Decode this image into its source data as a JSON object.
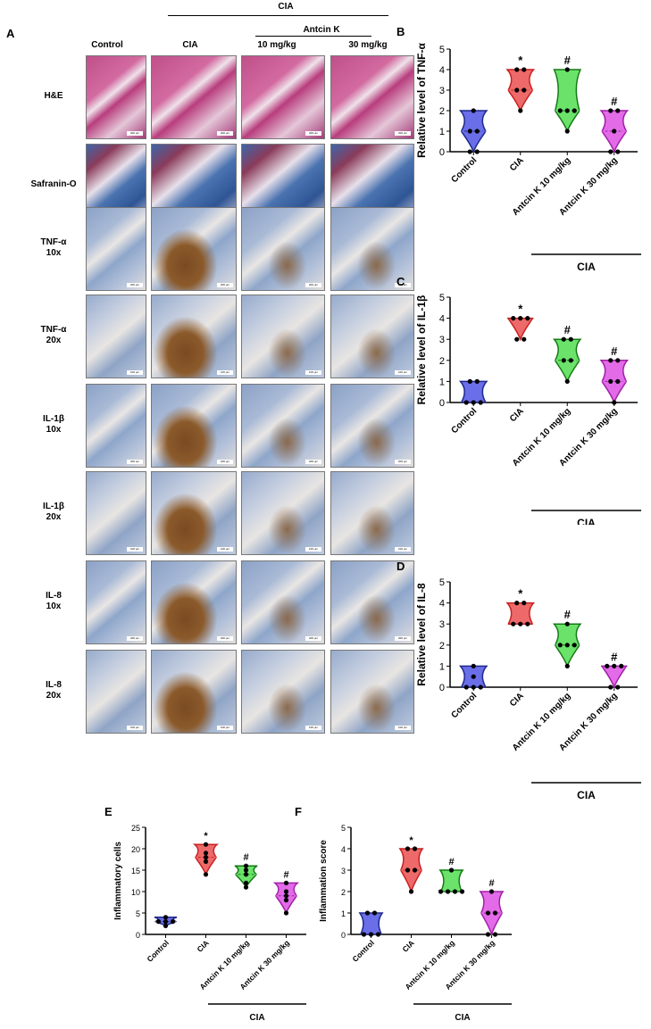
{
  "figure": {
    "panel_labels": {
      "A": "A",
      "B": "B",
      "C": "C",
      "D": "D",
      "E": "E",
      "F": "F"
    },
    "top_group": "CIA",
    "antcin_group": "Antcin K",
    "columns": [
      "Control",
      "CIA",
      "10 mg/kg",
      "30 mg/kg"
    ],
    "rows": [
      {
        "line1": "H&E",
        "line2": "",
        "stain": "he",
        "scale": "200 μm"
      },
      {
        "line1": "Safranin-O",
        "line2": "",
        "stain": "saf",
        "scale": "200 μm"
      },
      {
        "line1": "TNF-α",
        "line2": "10x",
        "stain": "ihc10",
        "scale": "200 μm"
      },
      {
        "line1": "TNF-α",
        "line2": "20x",
        "stain": "ihc20",
        "scale": "100 μm"
      },
      {
        "line1": "IL-1β",
        "line2": "10x",
        "stain": "ihc10",
        "scale": "200 μm"
      },
      {
        "line1": "IL-1β",
        "line2": "20x",
        "stain": "ihc20",
        "scale": "100 μm"
      },
      {
        "line1": "IL-8",
        "line2": "10x",
        "stain": "ihc10",
        "scale": "200 μm"
      },
      {
        "line1": "IL-8",
        "line2": "20x",
        "stain": "ihc20",
        "scale": "100 μm"
      }
    ],
    "colors": {
      "control": "#6a6ee8",
      "cia": "#ee6a6a",
      "low": "#6be36b",
      "high": "#e36be8",
      "control_dark": "#1e2a8a",
      "cia_dark": "#c82020",
      "low_dark": "#157a15",
      "high_dark": "#a020a8"
    }
  },
  "chart_data": [
    {
      "id": "B",
      "type": "violin",
      "ylabel": "Relative level of TNF-α",
      "ylim": [
        0,
        5
      ],
      "yticks": [
        "0",
        "1",
        "2",
        "3",
        "4",
        "5"
      ],
      "categories": [
        "Control",
        "CIA",
        "Antcin K 10 mg/kg",
        "Antcin K 30 mg/kg"
      ],
      "points": [
        [
          0,
          0,
          1,
          1,
          2
        ],
        [
          2,
          3,
          3,
          4,
          4
        ],
        [
          1,
          2,
          2,
          2,
          4
        ],
        [
          0,
          0,
          1,
          2,
          2
        ]
      ],
      "marks": [
        "",
        "*",
        "#",
        "#"
      ],
      "bracket": "CIA"
    },
    {
      "id": "C",
      "type": "violin",
      "ylabel": "Relative level of IL-1β",
      "ylim": [
        0,
        5
      ],
      "yticks": [
        "0",
        "1",
        "2",
        "3",
        "4",
        "5"
      ],
      "categories": [
        "Control",
        "CIA",
        "Antcin K 10 mg/kg",
        "Antcin K 30 mg/kg"
      ],
      "points": [
        [
          0,
          0,
          0,
          1,
          1
        ],
        [
          3,
          3,
          4,
          4,
          4
        ],
        [
          1,
          2,
          2,
          3,
          3
        ],
        [
          0,
          1,
          1,
          2,
          2
        ]
      ],
      "marks": [
        "",
        "*",
        "#",
        "#"
      ],
      "bracket": "CIA"
    },
    {
      "id": "D",
      "type": "violin",
      "ylabel": "Relative level of IL-8",
      "ylim": [
        0,
        5
      ],
      "yticks": [
        "0",
        "1",
        "2",
        "3",
        "4",
        "5"
      ],
      "categories": [
        "Control",
        "CIA",
        "Antcin K 10 mg/kg",
        "Antcin K 30 mg/kg"
      ],
      "points": [
        [
          0,
          0,
          0,
          0.5,
          1
        ],
        [
          3,
          3,
          3,
          4,
          4
        ],
        [
          1,
          2,
          2,
          2,
          3
        ],
        [
          0,
          0,
          1,
          1,
          1
        ]
      ],
      "marks": [
        "",
        "*",
        "#",
        "#"
      ],
      "bracket": "CIA"
    },
    {
      "id": "E",
      "type": "violin",
      "ylabel": "Inflammatory cells",
      "ylim": [
        0,
        25
      ],
      "yticks": [
        "0",
        "5",
        "10",
        "15",
        "20",
        "25"
      ],
      "categories": [
        "Control",
        "CIA",
        "Antcin K 10 mg/kg",
        "Antcin K 30 mg/kg"
      ],
      "points": [
        [
          2,
          3,
          3,
          3,
          4
        ],
        [
          14,
          17,
          18,
          19,
          21
        ],
        [
          11,
          12,
          14,
          15,
          16
        ],
        [
          5,
          8,
          9,
          10,
          12
        ]
      ],
      "marks": [
        "",
        "*",
        "#",
        "#"
      ],
      "bracket": "CIA"
    },
    {
      "id": "F",
      "type": "violin",
      "ylabel": "Inflammation score",
      "ylim": [
        0,
        5
      ],
      "yticks": [
        "0",
        "1",
        "2",
        "3",
        "4",
        "5"
      ],
      "categories": [
        "Control",
        "CIA",
        "Antcin K 10 mg/kg",
        "Antcin K 30 mg/kg"
      ],
      "points": [
        [
          0,
          0,
          0,
          1,
          1
        ],
        [
          2,
          3,
          3,
          4,
          4
        ],
        [
          2,
          2,
          2,
          2,
          3
        ],
        [
          0,
          0,
          1,
          1,
          2
        ]
      ],
      "marks": [
        "",
        "*",
        "#",
        "#"
      ],
      "bracket": "CIA"
    }
  ]
}
